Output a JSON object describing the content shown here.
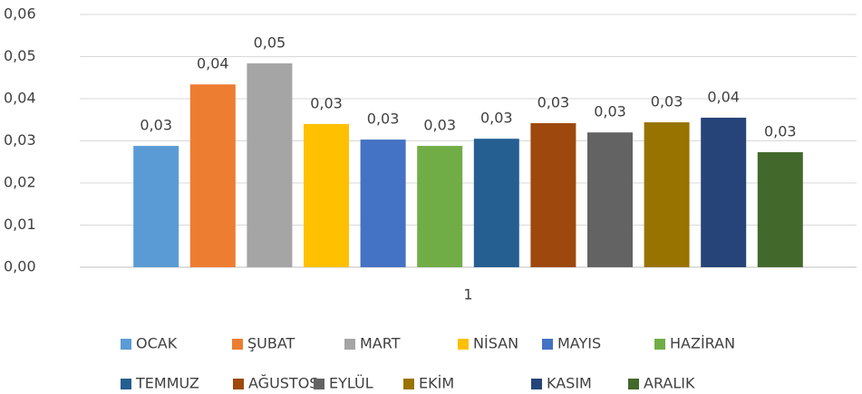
{
  "chart_data": {
    "type": "bar",
    "categories": [
      "1"
    ],
    "series": [
      {
        "name": "OCAK",
        "color": "#5b9bd5",
        "values": [
          0.0288
        ],
        "value_labels": [
          "0,03"
        ]
      },
      {
        "name": "ŞUBAT",
        "color": "#ed7d31",
        "values": [
          0.0434
        ],
        "value_labels": [
          "0,04"
        ]
      },
      {
        "name": "MART",
        "color": "#a5a5a5",
        "values": [
          0.0484
        ],
        "value_labels": [
          "0,05"
        ]
      },
      {
        "name": "NİSAN",
        "color": "#ffc000",
        "values": [
          0.034
        ],
        "value_labels": [
          "0,03"
        ]
      },
      {
        "name": "MAYIS",
        "color": "#4472c4",
        "values": [
          0.0303
        ],
        "value_labels": [
          "0,03"
        ]
      },
      {
        "name": "HAZİRAN",
        "color": "#70ad47",
        "values": [
          0.0288
        ],
        "value_labels": [
          "0,03"
        ]
      },
      {
        "name": "TEMMUZ",
        "color": "#255e91",
        "values": [
          0.0305
        ],
        "value_labels": [
          "0,03"
        ]
      },
      {
        "name": "AĞUSTOS",
        "color": "#9e480e",
        "values": [
          0.0342
        ],
        "value_labels": [
          "0,03"
        ]
      },
      {
        "name": "EYLÜL",
        "color": "#636363",
        "values": [
          0.032
        ],
        "value_labels": [
          "0,03"
        ]
      },
      {
        "name": "EKİM",
        "color": "#997300",
        "values": [
          0.0344
        ],
        "value_labels": [
          "0,03"
        ]
      },
      {
        "name": "KASIM",
        "color": "#264478",
        "values": [
          0.0355
        ],
        "value_labels": [
          "0,04"
        ]
      },
      {
        "name": "ARALIK",
        "color": "#43682b",
        "values": [
          0.0273
        ],
        "value_labels": [
          "0,03"
        ]
      }
    ],
    "ylim": [
      0,
      0.06
    ],
    "yticks": [
      {
        "value": 0,
        "label": "0,00"
      },
      {
        "value": 0.01,
        "label": "0,01"
      },
      {
        "value": 0.02,
        "label": "0,02"
      },
      {
        "value": 0.03,
        "label": "0,03"
      },
      {
        "value": 0.04,
        "label": "0,04"
      },
      {
        "value": 0.05,
        "label": "0,05"
      },
      {
        "value": 0.06,
        "label": "0,06"
      }
    ],
    "grid": true,
    "legend": "bottom"
  }
}
